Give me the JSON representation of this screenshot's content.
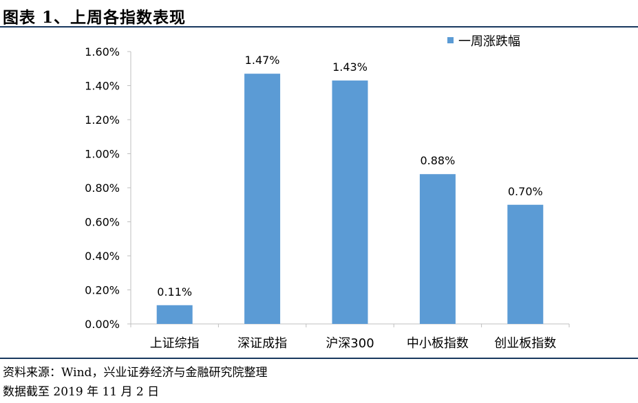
{
  "header": {
    "title": "图表 1、上周各指数表现"
  },
  "footer": {
    "source": "资料来源：Wind，兴业证券经济与金融研究院整理",
    "date_note": "数据截至 2019 年 11 月 2 日"
  },
  "colors": {
    "bar": "#5b9bd5",
    "rule": "#17375e",
    "axis": "#bfbfbf"
  },
  "chart_data": {
    "type": "bar",
    "categories": [
      "上证综指",
      "深证成指",
      "沪深300",
      "中小板指数",
      "创业板指数"
    ],
    "series": [
      {
        "name": "一周涨跌幅",
        "values": [
          0.11,
          1.47,
          1.43,
          0.88,
          0.7
        ]
      }
    ],
    "data_labels": [
      "0.11%",
      "1.47%",
      "1.43%",
      "0.88%",
      "0.70%"
    ],
    "ylim": [
      0,
      1.6
    ],
    "yticks": [
      0,
      0.2,
      0.4,
      0.6,
      0.8,
      1.0,
      1.2,
      1.4,
      1.6
    ],
    "ytick_labels": [
      "0.00%",
      "0.20%",
      "0.40%",
      "0.60%",
      "0.80%",
      "1.00%",
      "1.20%",
      "1.40%",
      "1.60%"
    ],
    "grid": false,
    "legend_position": "top-right",
    "title": "",
    "xlabel": "",
    "ylabel": ""
  }
}
